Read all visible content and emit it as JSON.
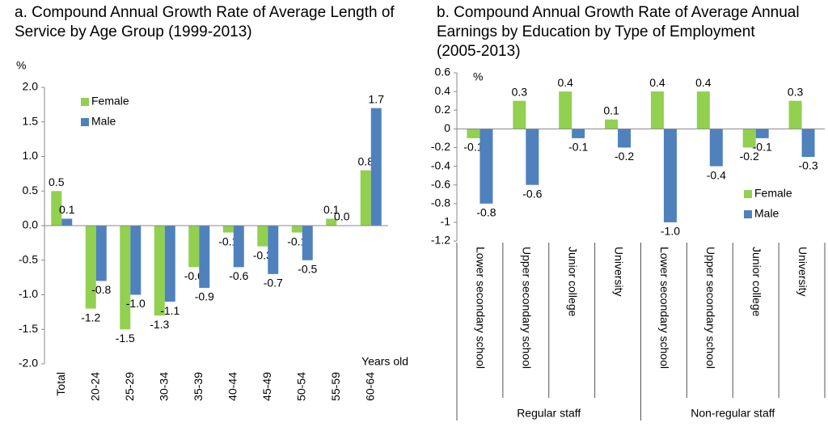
{
  "chart_data": [
    {
      "type": "bar",
      "title": "a. Compound Annual Growth Rate of Average Length of Service by Age Group (1999-2013)",
      "y_label": "%",
      "x_label": "Years old",
      "categories": [
        "Total",
        "20-24",
        "25-29",
        "30-34",
        "35-39",
        "40-44",
        "45-49",
        "50-54",
        "55-59",
        "60-64"
      ],
      "series": [
        {
          "name": "Female",
          "color": "#92d050",
          "values": [
            0.5,
            -1.2,
            -1.5,
            -1.3,
            -0.6,
            -0.1,
            -0.3,
            -0.1,
            0.1,
            0.8
          ],
          "value_labels": [
            "0.5",
            "-1.2",
            "-1.5",
            "-1.3",
            "-0.6",
            "-0.1",
            "-0.3",
            "-0.1",
            "0.1",
            "0.8"
          ]
        },
        {
          "name": "Male",
          "color": "#4f81bd",
          "values": [
            0.1,
            -0.8,
            -1.0,
            -1.1,
            -0.9,
            -0.6,
            -0.7,
            -0.5,
            0.0,
            1.7
          ],
          "value_labels": [
            "0.1",
            "-0.8",
            "-1.0",
            "-1.1",
            "-0.9",
            "-0.6",
            "-0.7",
            "-0.5",
            "0.0",
            "1.7"
          ]
        }
      ],
      "ylim": [
        -2,
        2
      ],
      "yticks": [
        {
          "value": -2,
          "label": "-2.0"
        },
        -1.5,
        {
          "value": -1,
          "label": "-1.0"
        },
        -0.5,
        {
          "value": 0,
          "label": "0.0"
        },
        0.5,
        {
          "value": 1,
          "label": "1.0"
        },
        1.5,
        {
          "value": 2,
          "label": "2.0"
        }
      ],
      "legend": "upper left"
    },
    {
      "type": "bar",
      "title": "b. Compound Annual Growth Rate of Average Annual Earnings by Education by Type of Employment (2005-2013)",
      "y_label": "%",
      "categories": [
        "Lower secondary school",
        "Upper secondary school",
        "Junior college",
        "University",
        "Lower secondary school",
        "Upper secondary school",
        "Junior college",
        "University"
      ],
      "groups": [
        "Regular staff",
        "Non-regular staff"
      ],
      "series": [
        {
          "name": "Female",
          "color": "#92d050",
          "values": [
            -0.1,
            0.3,
            0.4,
            0.1,
            0.4,
            0.4,
            -0.2,
            0.3
          ]
        },
        {
          "name": "Male",
          "color": "#4f81bd",
          "values": [
            -0.8,
            -0.6,
            -0.1,
            -0.2,
            -1.0,
            -0.4,
            -0.1,
            -0.3
          ],
          "value_labels": [
            "-0.8",
            "-0.6",
            "-0.1",
            "-0.2",
            "-1.0",
            "-0.4",
            "-0.1",
            "-0.3"
          ]
        }
      ],
      "ylim": [
        -1.2,
        0.6
      ],
      "yticks": [
        -1.2,
        -1,
        -0.8,
        -0.6,
        -0.4,
        -0.2,
        0,
        0.2,
        0.4,
        0.6
      ],
      "legend": "lower right"
    }
  ]
}
